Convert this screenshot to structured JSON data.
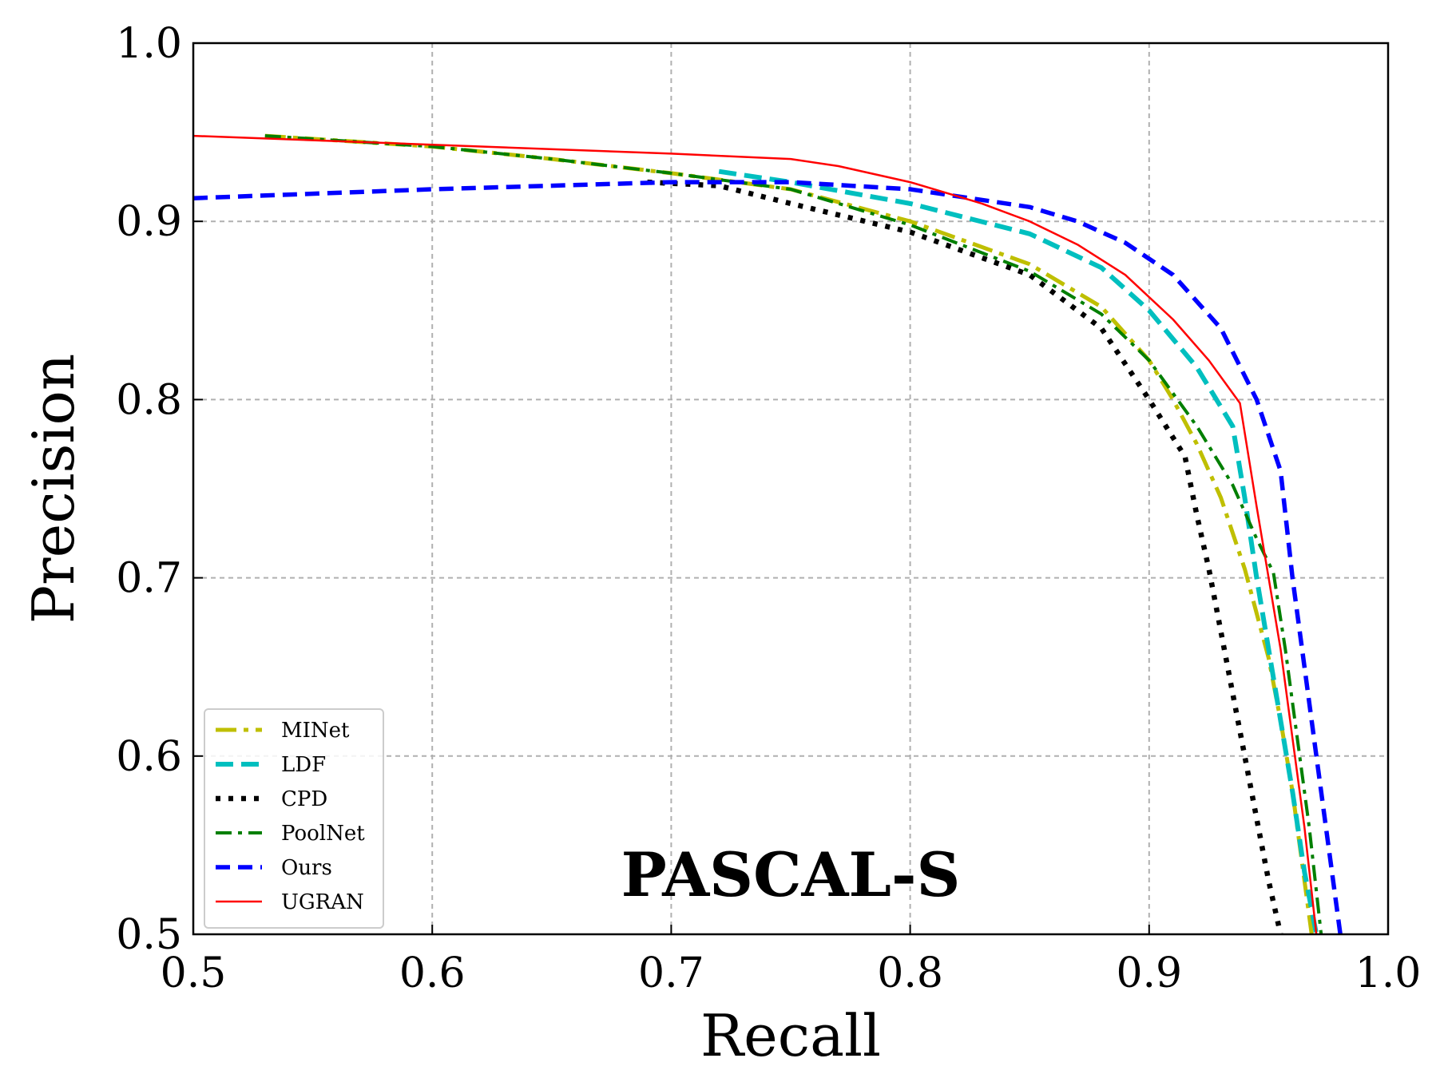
{
  "chart_data": {
    "type": "line",
    "title": "",
    "annotation": "PASCAL-S",
    "xlabel": "Recall",
    "ylabel": "Precision",
    "xlim": [
      0.5,
      1.0
    ],
    "ylim": [
      0.5,
      1.0
    ],
    "xticks": [
      "0.5",
      "0.6",
      "0.7",
      "0.8",
      "0.9",
      "1.0"
    ],
    "yticks": [
      "0.5",
      "0.6",
      "0.7",
      "0.8",
      "0.9",
      "1.0"
    ],
    "grid": true,
    "legend_position": "lower-left",
    "series": [
      {
        "name": "MINet",
        "color": "#bfbf00",
        "style": "dashdot-long",
        "x": [
          0.53,
          0.6,
          0.65,
          0.7,
          0.75,
          0.8,
          0.85,
          0.88,
          0.9,
          0.91,
          0.92,
          0.93,
          0.94,
          0.95,
          0.955,
          0.96,
          0.965,
          0.968
        ],
        "y": [
          0.948,
          0.942,
          0.935,
          0.927,
          0.918,
          0.9,
          0.876,
          0.852,
          0.822,
          0.8,
          0.775,
          0.745,
          0.705,
          0.655,
          0.62,
          0.58,
          0.53,
          0.5
        ]
      },
      {
        "name": "LDF",
        "color": "#00bfbf",
        "style": "dashed-thick",
        "x": [
          0.72,
          0.75,
          0.8,
          0.85,
          0.88,
          0.9,
          0.92,
          0.935,
          0.94,
          0.945,
          0.95,
          0.955,
          0.96,
          0.965,
          0.97
        ],
        "y": [
          0.928,
          0.922,
          0.91,
          0.893,
          0.874,
          0.85,
          0.818,
          0.785,
          0.745,
          0.7,
          0.66,
          0.62,
          0.58,
          0.535,
          0.5
        ]
      },
      {
        "name": "CPD",
        "color": "#000000",
        "style": "dotted",
        "x": [
          0.69,
          0.72,
          0.75,
          0.8,
          0.85,
          0.88,
          0.9,
          0.915,
          0.92,
          0.925,
          0.93,
          0.935,
          0.94,
          0.945,
          0.95,
          0.955
        ],
        "y": [
          0.922,
          0.92,
          0.91,
          0.894,
          0.87,
          0.84,
          0.8,
          0.768,
          0.735,
          0.705,
          0.67,
          0.635,
          0.6,
          0.565,
          0.53,
          0.5
        ]
      },
      {
        "name": "PoolNet",
        "color": "#007f00",
        "style": "dashdot",
        "x": [
          0.53,
          0.6,
          0.65,
          0.7,
          0.75,
          0.8,
          0.85,
          0.88,
          0.9,
          0.92,
          0.935,
          0.945,
          0.952,
          0.957,
          0.962,
          0.967,
          0.972
        ],
        "y": [
          0.948,
          0.942,
          0.935,
          0.927,
          0.918,
          0.898,
          0.872,
          0.848,
          0.822,
          0.785,
          0.752,
          0.722,
          0.703,
          0.66,
          0.61,
          0.56,
          0.5
        ]
      },
      {
        "name": "Ours",
        "color": "#0000ff",
        "style": "dashed",
        "x": [
          0.5,
          0.6,
          0.7,
          0.75,
          0.8,
          0.85,
          0.87,
          0.89,
          0.91,
          0.93,
          0.945,
          0.955,
          0.96,
          0.965,
          0.97,
          0.975,
          0.98
        ],
        "y": [
          0.913,
          0.918,
          0.922,
          0.922,
          0.918,
          0.908,
          0.9,
          0.888,
          0.87,
          0.84,
          0.8,
          0.76,
          0.7,
          0.65,
          0.6,
          0.55,
          0.5
        ]
      },
      {
        "name": "UGRAN",
        "color": "#ff0000",
        "style": "solid",
        "x": [
          0.5,
          0.6,
          0.7,
          0.75,
          0.77,
          0.8,
          0.83,
          0.85,
          0.87,
          0.89,
          0.91,
          0.925,
          0.938,
          0.945,
          0.95,
          0.955,
          0.96,
          0.965,
          0.97
        ],
        "y": [
          0.948,
          0.943,
          0.938,
          0.935,
          0.931,
          0.922,
          0.91,
          0.9,
          0.887,
          0.87,
          0.845,
          0.822,
          0.798,
          0.74,
          0.7,
          0.66,
          0.61,
          0.56,
          0.5
        ]
      }
    ]
  }
}
